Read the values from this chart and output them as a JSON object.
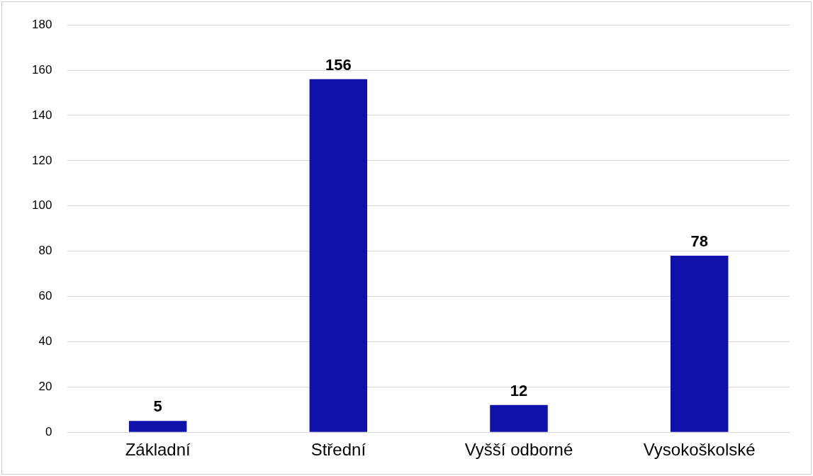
{
  "chart_data": {
    "type": "bar",
    "categories": [
      "Základní",
      "Střední",
      "Vyšší odborné",
      "Vysokoškolské"
    ],
    "values": [
      5,
      156,
      12,
      78
    ],
    "color": "#1010aa",
    "ylim": [
      0,
      180
    ],
    "yticks": [
      0,
      20,
      40,
      60,
      80,
      100,
      120,
      140,
      160,
      180
    ],
    "grid": "y",
    "data_labels": true,
    "legend": false
  }
}
